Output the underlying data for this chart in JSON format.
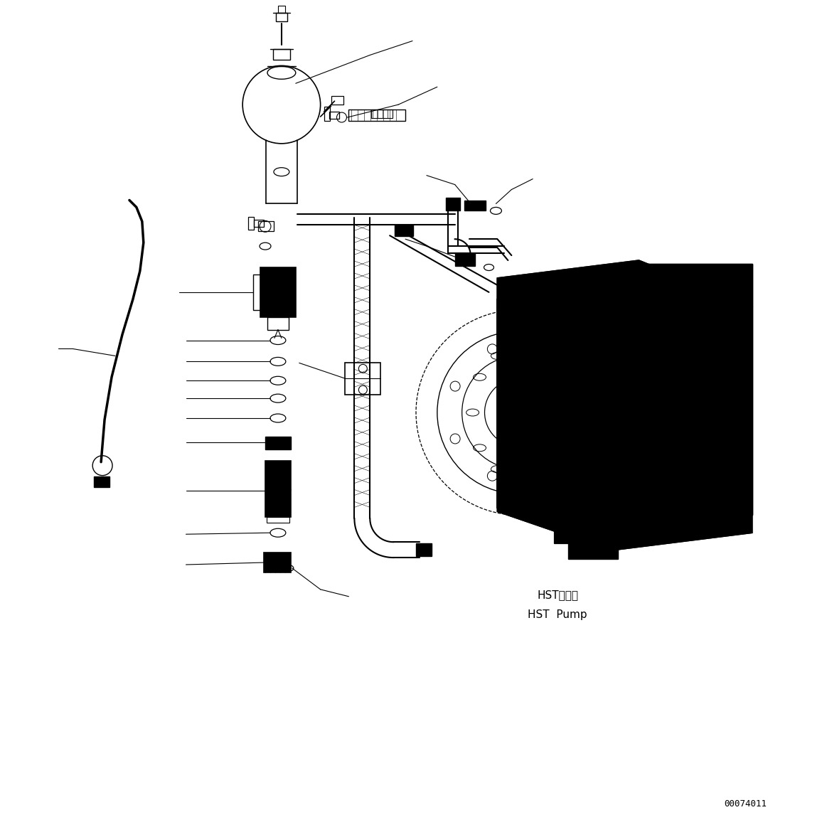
{
  "fig_width": 11.63,
  "fig_height": 11.77,
  "dpi": 100,
  "bg_color": "#ffffff",
  "line_color": "#000000",
  "part_num_text": "00074011",
  "hst_label_jp": "HSTポンプ",
  "hst_label_en": "HST  Pump"
}
